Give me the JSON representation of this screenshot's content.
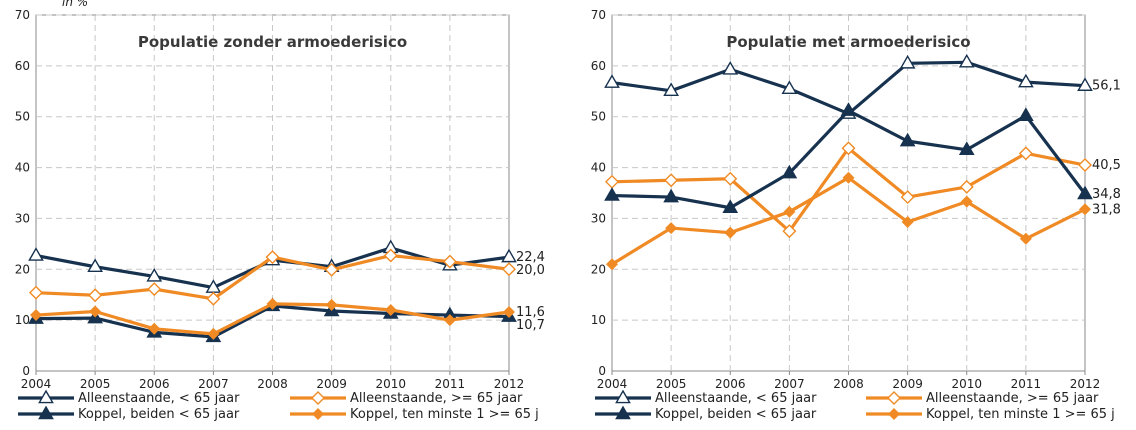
{
  "y_axis_label": "in %",
  "colors": {
    "dark": "#17324f",
    "orange": "#f08a24",
    "grid": "#c8c8c8"
  },
  "chart_data": [
    {
      "type": "line",
      "title": "Populatie zonder armoederisico",
      "x": [
        "2004",
        "2005",
        "2006",
        "2007",
        "2008",
        "2009",
        "2010",
        "2011",
        "2012"
      ],
      "ylim": [
        0,
        70
      ],
      "yticks": [
        0,
        10,
        20,
        30,
        40,
        50,
        60,
        70
      ],
      "grid": true,
      "legend_position": "bottom",
      "series": [
        {
          "name": "Alleenstaande, < 65 jaar",
          "color": "dark",
          "marker": "triangle-open",
          "values": [
            22.7,
            20.5,
            18.6,
            16.4,
            21.8,
            20.5,
            24.2,
            20.8,
            22.4
          ],
          "end_label": "22,4"
        },
        {
          "name": "Alleenstaande, >= 65 jaar",
          "color": "orange",
          "marker": "diamond-open",
          "values": [
            15.4,
            14.9,
            16.1,
            14.2,
            22.4,
            19.9,
            22.7,
            21.5,
            20.0
          ],
          "end_label": "20,0"
        },
        {
          "name": "Koppel, beiden < 65 jaar",
          "color": "dark",
          "marker": "triangle-filled",
          "values": [
            10.3,
            10.4,
            7.6,
            6.7,
            12.8,
            11.8,
            11.3,
            11.0,
            10.7
          ],
          "end_label": "10,7"
        },
        {
          "name": "Koppel, ten minste 1 >= 65 j",
          "color": "orange",
          "marker": "diamond-filled",
          "values": [
            11.0,
            11.7,
            8.3,
            7.3,
            13.2,
            13.0,
            12.0,
            10.0,
            11.6
          ],
          "end_label": "11,6"
        }
      ]
    },
    {
      "type": "line",
      "title": "Populatie met armoederisico",
      "x": [
        "2004",
        "2005",
        "2006",
        "2007",
        "2008",
        "2009",
        "2010",
        "2011",
        "2012"
      ],
      "ylim": [
        0,
        70
      ],
      "yticks": [
        0,
        10,
        20,
        30,
        40,
        50,
        60,
        70
      ],
      "grid": true,
      "legend_position": "bottom",
      "series": [
        {
          "name": "Alleenstaande, < 65 jaar",
          "color": "dark",
          "marker": "triangle-open",
          "values": [
            56.7,
            55.1,
            59.3,
            55.5,
            50.6,
            60.5,
            60.7,
            56.8,
            56.1
          ],
          "end_label": "56,1"
        },
        {
          "name": "Alleenstaande, >= 65 jaar",
          "color": "orange",
          "marker": "diamond-open",
          "values": [
            37.2,
            37.5,
            37.8,
            27.5,
            43.8,
            34.2,
            36.2,
            42.8,
            40.5
          ],
          "end_label": "40,5"
        },
        {
          "name": "Koppel, beiden < 65 jaar",
          "color": "dark",
          "marker": "triangle-filled",
          "values": [
            34.5,
            34.2,
            32.1,
            38.9,
            51.2,
            45.2,
            43.5,
            50.2,
            34.8
          ],
          "end_label": "34,8"
        },
        {
          "name": "Koppel, ten minste 1 >= 65 j",
          "color": "orange",
          "marker": "diamond-filled",
          "values": [
            21.0,
            28.1,
            27.2,
            31.3,
            38.0,
            29.3,
            33.3,
            26.0,
            31.8
          ],
          "end_label": "31,8"
        }
      ]
    }
  ]
}
